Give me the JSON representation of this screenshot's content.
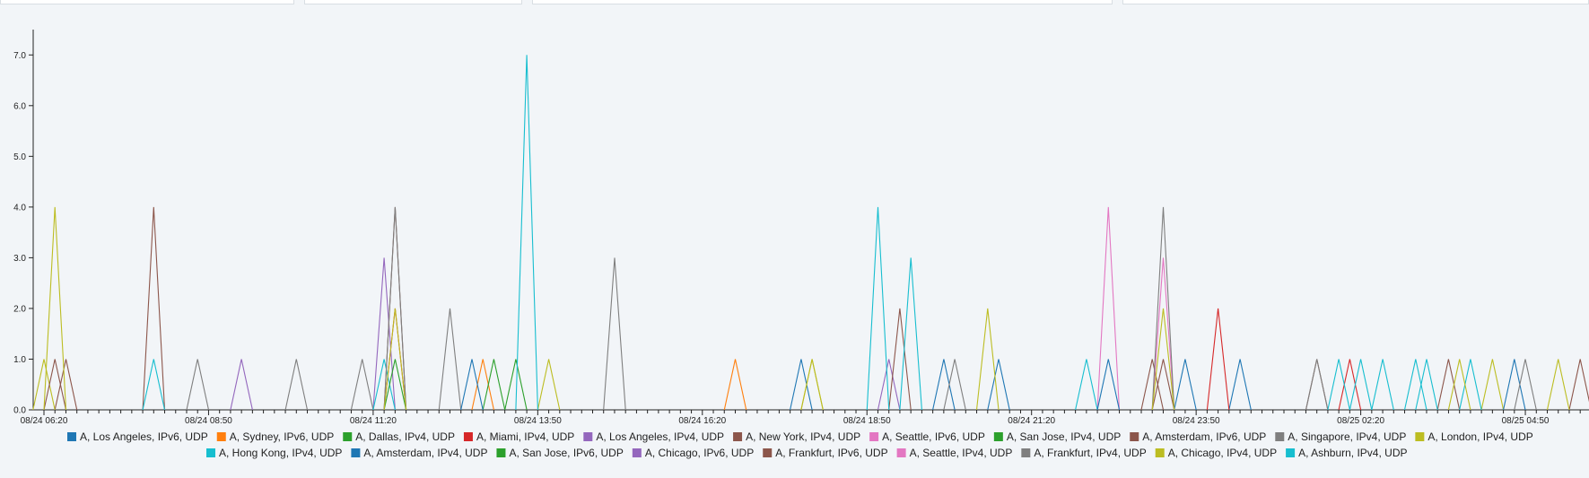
{
  "chart_data": {
    "type": "line",
    "title": "",
    "xlabel": "",
    "ylabel": "",
    "ylim": [
      0,
      7.5
    ],
    "y_ticks": [
      "0.0",
      "1.0",
      "2.0",
      "3.0",
      "4.0",
      "5.0",
      "6.0",
      "7.0"
    ],
    "x_ticks": [
      "08/24 06:20",
      "08/24 08:50",
      "08/24 11:20",
      "08/24 13:50",
      "08/24 16:20",
      "08/24 18:50",
      "08/24 21:20",
      "08/24 23:50",
      "08/25 02:20",
      "08/25 04:50"
    ],
    "x_start": "08/24 06:20",
    "x_step_minutes": 10,
    "grid": false,
    "legend_position": "bottom",
    "series": [
      {
        "name": "A, Los Angeles, IPv6, UDP",
        "color": "#1f77b4",
        "peaks": [
          [
            69,
            1
          ],
          [
            82,
            1
          ],
          [
            87,
            1
          ],
          [
            104,
            1
          ],
          [
            109,
            1
          ]
        ]
      },
      {
        "name": "A, Sydney, IPv6, UDP",
        "color": "#ff7f0e",
        "peaks": [
          [
            40,
            1
          ],
          [
            63,
            1
          ]
        ]
      },
      {
        "name": "A, Dallas, IPv4, UDP",
        "color": "#2ca02c",
        "peaks": [
          [
            41,
            1
          ]
        ]
      },
      {
        "name": "A, Miami, IPv4, UDP",
        "color": "#d62728",
        "peaks": [
          [
            32,
            2
          ],
          [
            107,
            2
          ],
          [
            119,
            1
          ]
        ]
      },
      {
        "name": "A, Los Angeles, IPv4, UDP",
        "color": "#9467bd",
        "peaks": [
          [
            18,
            1
          ],
          [
            31,
            3
          ],
          [
            77,
            1
          ]
        ]
      },
      {
        "name": "A, New York, IPv4, UDP",
        "color": "#8c564b",
        "peaks": [
          [
            2,
            1
          ],
          [
            10,
            4
          ],
          [
            32,
            4
          ],
          [
            78,
            2
          ],
          [
            101,
            1
          ],
          [
            116,
            1
          ]
        ]
      },
      {
        "name": "A, Seattle, IPv6, UDP",
        "color": "#e377c2",
        "peaks": [
          [
            97,
            4
          ],
          [
            102,
            3
          ]
        ]
      },
      {
        "name": "A, San Jose, IPv4, UDP",
        "color": "#2ca02c",
        "peaks": [
          [
            43,
            1
          ]
        ]
      },
      {
        "name": "A, Amsterdam, IPv6, UDP",
        "color": "#8c564b",
        "peaks": [
          [
            102,
            1
          ],
          [
            128,
            1
          ]
        ]
      },
      {
        "name": "A, Singapore, IPv4, UDP",
        "color": "#7f7f7f",
        "peaks": [
          [
            14,
            1
          ],
          [
            23,
            1
          ],
          [
            29,
            1
          ],
          [
            37,
            2
          ],
          [
            52,
            3
          ],
          [
            83,
            1
          ],
          [
            102,
            4
          ],
          [
            116,
            1
          ]
        ]
      },
      {
        "name": "A, London, IPv4, UDP",
        "color": "#bcbd22",
        "peaks": [
          [
            0,
            1
          ],
          [
            46,
            1
          ],
          [
            70,
            1
          ],
          [
            86,
            2
          ],
          [
            102,
            2
          ],
          [
            132,
            1
          ]
        ]
      },
      {
        "name": "A, Hong Kong, IPv4, UDP",
        "color": "#17becf",
        "peaks": [
          [
            10,
            1
          ],
          [
            31,
            1
          ],
          [
            44,
            7
          ],
          [
            76,
            4
          ],
          [
            79,
            3
          ],
          [
            95,
            1
          ],
          [
            118,
            1
          ],
          [
            122,
            1
          ],
          [
            125,
            1
          ],
          [
            130,
            1
          ]
        ]
      },
      {
        "name": "A, Amsterdam, IPv4, UDP",
        "color": "#1f77b4",
        "peaks": [
          [
            39,
            1
          ],
          [
            97,
            1
          ],
          [
            134,
            1
          ]
        ]
      },
      {
        "name": "A, San Jose, IPv6, UDP",
        "color": "#2ca02c",
        "peaks": [
          [
            32,
            1
          ]
        ]
      },
      {
        "name": "A, Chicago, IPv6, UDP",
        "color": "#9467bd",
        "peaks": []
      },
      {
        "name": "A, Frankfurt, IPv6, UDP",
        "color": "#8c564b",
        "peaks": [
          [
            1,
            1
          ],
          [
            140,
            1
          ]
        ]
      },
      {
        "name": "A, Seattle, IPv4, UDP",
        "color": "#e377c2",
        "peaks": []
      },
      {
        "name": "A, Frankfurt, IPv4, UDP",
        "color": "#7f7f7f",
        "peaks": [
          [
            32,
            4
          ],
          [
            135,
            1
          ]
        ]
      },
      {
        "name": "A, Chicago, IPv4, UDP",
        "color": "#bcbd22",
        "peaks": [
          [
            1,
            4
          ],
          [
            32,
            2
          ],
          [
            70,
            1
          ],
          [
            129,
            1
          ],
          [
            138,
            1
          ]
        ]
      },
      {
        "name": "A, Ashburn, IPv4, UDP",
        "color": "#17becf",
        "peaks": [
          [
            120,
            1
          ],
          [
            126,
            1
          ]
        ]
      }
    ]
  }
}
